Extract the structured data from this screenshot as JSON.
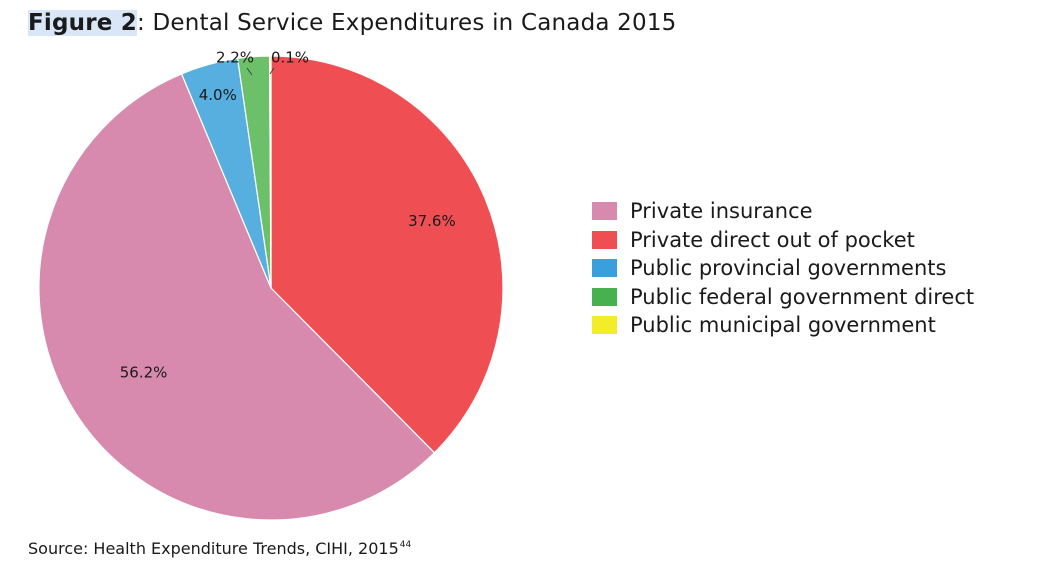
{
  "figure": {
    "title_bold": "Figure 2",
    "title_rest": ": Dental Service Expenditures in Canada 2015"
  },
  "source": {
    "text": "Source: Health Expenditure Trends, CIHI, 2015",
    "footnote": "44"
  },
  "chart_data": {
    "type": "pie",
    "title": "Dental Service Expenditures in Canada 2015",
    "start": "12 o'clock",
    "direction": "clockwise",
    "legend_position": "right",
    "slices": [
      {
        "name": "Private direct out of pocket",
        "value": 37.6,
        "label": "37.6%",
        "color": "#ef4e53"
      },
      {
        "name": "Private insurance",
        "value": 56.2,
        "label": "56.2%",
        "color": "#d88aae"
      },
      {
        "name": "Public provincial governments",
        "value": 4.0,
        "label": "4.0%",
        "color": "#56afdf"
      },
      {
        "name": "Public federal government direct",
        "value": 2.2,
        "label": "2.2%",
        "color": "#6cc06a"
      },
      {
        "name": "Public municipal government",
        "value": 0.1,
        "label": "0.1%",
        "color": "#eeea3c"
      }
    ],
    "legend": [
      {
        "label": "Private insurance",
        "color": "#d88aae"
      },
      {
        "label": "Private direct out of pocket",
        "color": "#ef4e53"
      },
      {
        "label": "Public provincial governments",
        "color": "#3aa0dc"
      },
      {
        "label": "Public federal government direct",
        "color": "#48b14f"
      },
      {
        "label": "Public municipal government",
        "color": "#f3ec2a"
      }
    ]
  }
}
